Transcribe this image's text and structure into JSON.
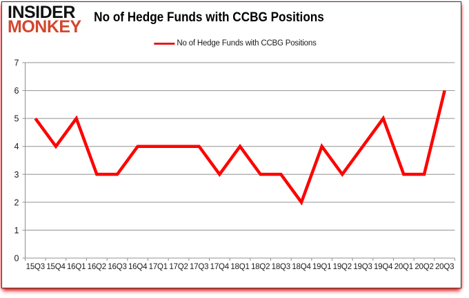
{
  "header": {
    "logo": {
      "line1": "INSIDER",
      "line2": "MONKEY"
    },
    "title": "No of Hedge Funds with CCBG Positions",
    "legend": {
      "label": "No of Hedge Funds with CCBG Positions"
    }
  },
  "colors": {
    "series_line": "#fe0000",
    "legend_marker": "#e51a1a",
    "logo_red": "#d2472e",
    "logo_black": "#111111",
    "gridline": "#909090",
    "axis_line": "#909090",
    "axis_text": "#1a1a1a",
    "frame_border": "#3a3a3a",
    "frame_shadow": "#e61a1a",
    "background": "#ffffff"
  },
  "chart_data": {
    "type": "line",
    "title": "No of Hedge Funds with CCBG Positions",
    "xlabel": "",
    "ylabel": "",
    "categories": [
      "15Q3",
      "15Q4",
      "16Q1",
      "16Q2",
      "16Q3",
      "16Q4",
      "17Q1",
      "17Q2",
      "17Q3",
      "17Q4",
      "18Q1",
      "18Q2",
      "18Q3",
      "18Q4",
      "19Q1",
      "19Q2",
      "19Q3",
      "19Q4",
      "20Q1",
      "20Q2",
      "20Q3"
    ],
    "series": [
      {
        "name": "No of Hedge Funds with CCBG Positions",
        "values": [
          5,
          4,
          5,
          3,
          3,
          4,
          4,
          4,
          4,
          3,
          4,
          3,
          3,
          2,
          4,
          3,
          4,
          5,
          3,
          3,
          6
        ]
      }
    ],
    "ylim": [
      0,
      7
    ],
    "yticks": [
      0,
      1,
      2,
      3,
      4,
      5,
      6,
      7
    ],
    "grid": true,
    "legend_position": "top"
  }
}
